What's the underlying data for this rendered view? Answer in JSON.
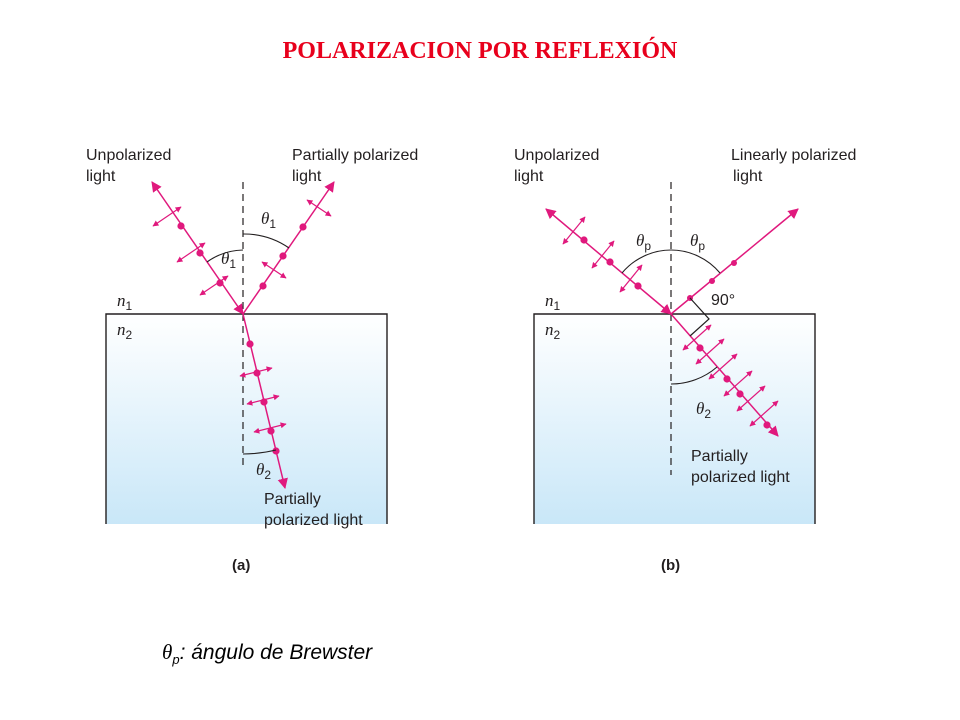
{
  "title": "POLARIZACION POR REFLEXIÓN",
  "panel_a": {
    "incident_label_1": "Unpolarized",
    "incident_label_2": "light",
    "reflected_label_1": "Partially polarized",
    "reflected_label_2": "light",
    "transmitted_label_1": "Partially",
    "transmitted_label_2": "polarized light",
    "angle_incident": "θ",
    "angle_incident_sub": "1",
    "angle_reflected": "θ",
    "angle_reflected_sub": "1",
    "angle_refracted": "θ",
    "angle_refracted_sub": "2",
    "medium_1": "n",
    "medium_1_sub": "1",
    "medium_2": "n",
    "medium_2_sub": "2",
    "panel_label": "(a)"
  },
  "panel_b": {
    "incident_label_1": "Unpolarized",
    "incident_label_2": "light",
    "reflected_label_1": "Linearly polarized",
    "reflected_label_2": "light",
    "transmitted_label_1": "Partially",
    "transmitted_label_2": "polarized light",
    "angle_incident": "θ",
    "angle_incident_sub": "p",
    "angle_reflected": "θ",
    "angle_reflected_sub": "p",
    "angle_refracted": "θ",
    "angle_refracted_sub": "2",
    "right_angle": "90°",
    "medium_1": "n",
    "medium_1_sub": "1",
    "medium_2": "n",
    "medium_2_sub": "2",
    "panel_label": "(b)"
  },
  "caption": {
    "symbol": "θ",
    "symbol_sub": "p",
    "text": ": ángulo de Brewster"
  },
  "colors": {
    "title": "#e8001c",
    "ray": "#e0197d",
    "medium_top": "#ffffff",
    "medium_bottom": "#c9e7f8"
  }
}
